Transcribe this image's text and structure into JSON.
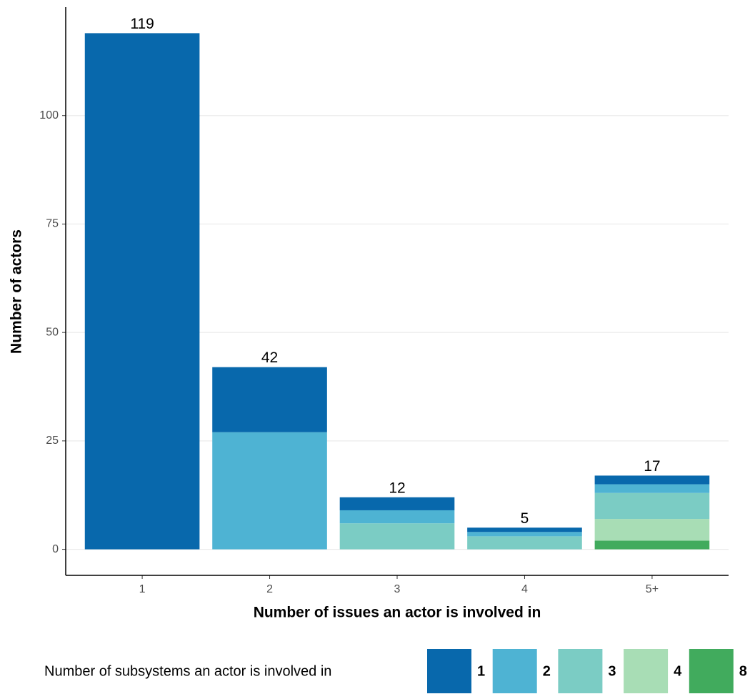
{
  "chart_data": {
    "type": "stacked-bar",
    "x_label": "Number of issues an actor is involved in",
    "y_label": "Number of actors",
    "categories": [
      "1",
      "2",
      "3",
      "4",
      "5+"
    ],
    "series": [
      {
        "name": "1",
        "color": "#0868ac",
        "values": [
          119,
          15,
          3,
          1,
          2
        ]
      },
      {
        "name": "2",
        "color": "#4eb3d3",
        "values": [
          0,
          27,
          3,
          1,
          2
        ]
      },
      {
        "name": "3",
        "color": "#7bccc4",
        "values": [
          0,
          0,
          6,
          3,
          6
        ]
      },
      {
        "name": "4",
        "color": "#a8ddb5",
        "values": [
          0,
          0,
          0,
          0,
          5
        ]
      },
      {
        "name": "8",
        "color": "#41ab5d",
        "values": [
          0,
          0,
          0,
          0,
          2
        ]
      }
    ],
    "totals": [
      119,
      42,
      12,
      5,
      17
    ],
    "legend_title": "Number of subsystems an actor is involved in",
    "legend_position": "bottom",
    "ylim": [
      -6,
      125
    ],
    "yticks": [
      0,
      25,
      50,
      75,
      100
    ],
    "grid": true
  }
}
